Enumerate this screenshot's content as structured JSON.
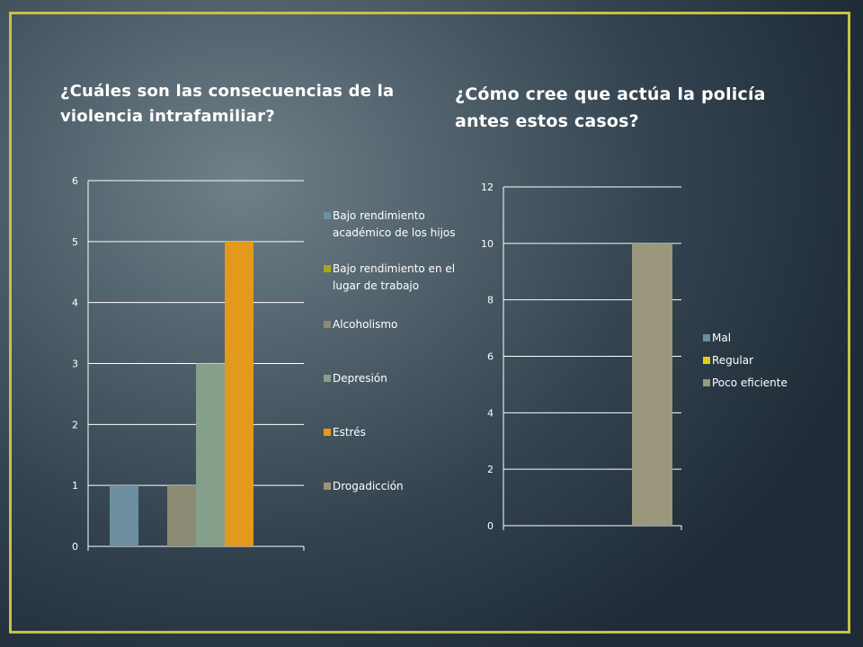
{
  "slide": {
    "title_left": "¿Cuáles son las consecuencias de la violencia intrafamiliar?",
    "title_right": "¿Cómo cree que actúa la policía antes estos casos?",
    "colors": {
      "frame": "#c7c146",
      "background": "#3f4f5b",
      "text": "#ffffff"
    }
  },
  "chart_data": [
    {
      "type": "bar",
      "title": "",
      "xlabel": "",
      "ylabel": "",
      "ylim": [
        0,
        6
      ],
      "yticks": [
        0,
        1,
        2,
        3,
        4,
        5,
        6
      ],
      "grid": true,
      "legend_position": "right",
      "series": [
        {
          "name": "Bajo rendimiento académico de los hijos",
          "value": 1,
          "color": "#6d8fa0"
        },
        {
          "name": "Bajo rendimiento en el lugar de trabajo",
          "value": 0,
          "color": "#a6a913"
        },
        {
          "name": "Alcoholismo",
          "value": 1,
          "color": "#8c8a72"
        },
        {
          "name": "Depresión",
          "value": 3,
          "color": "#84a08a"
        },
        {
          "name": "Estrés",
          "value": 5,
          "color": "#e39a1c"
        },
        {
          "name": "Drogadicción",
          "value": 0,
          "color": "#9c9478"
        }
      ]
    },
    {
      "type": "bar",
      "title": "",
      "xlabel": "",
      "ylabel": "",
      "ylim": [
        0,
        12
      ],
      "yticks": [
        0,
        2,
        4,
        6,
        8,
        10,
        12
      ],
      "grid": true,
      "legend_position": "right",
      "series": [
        {
          "name": "Mal",
          "value": 0,
          "color": "#6d8fa0"
        },
        {
          "name": "Regular",
          "value": 0,
          "color": "#e2cd14"
        },
        {
          "name": "Poco eficiente",
          "value": 10,
          "color": "#9a977d"
        }
      ]
    }
  ]
}
